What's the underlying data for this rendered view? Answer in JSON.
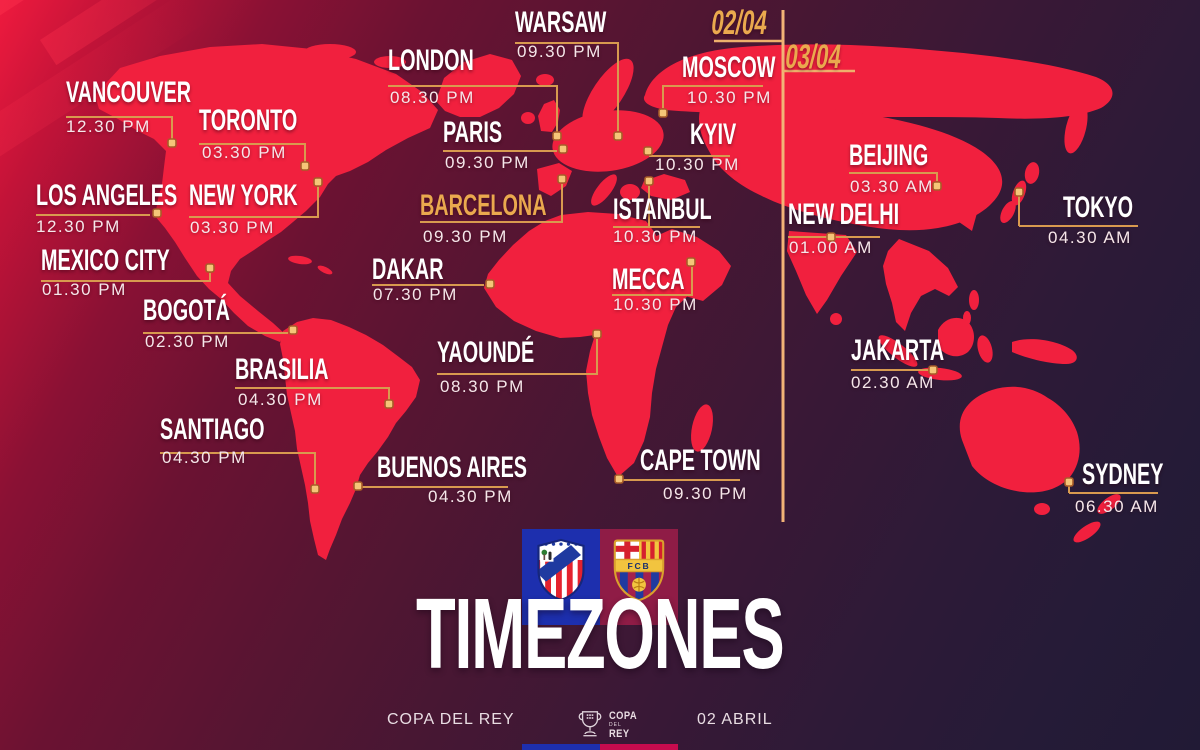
{
  "title": "TIMEZONES",
  "dates": {
    "left": "02/04",
    "right": "03/04"
  },
  "cities": [
    {
      "id": "vancouver",
      "name": "VANCOUVER",
      "time": "12.30 PM"
    },
    {
      "id": "los-angeles",
      "name": "LOS ANGELES",
      "time": "12.30 PM"
    },
    {
      "id": "mexico-city",
      "name": "MEXICO CITY",
      "time": "01.30 PM"
    },
    {
      "id": "toronto",
      "name": "TORONTO",
      "time": "03.30 PM"
    },
    {
      "id": "new-york",
      "name": "NEW YORK",
      "time": "03.30 PM"
    },
    {
      "id": "bogota",
      "name": "BOGOTÁ",
      "time": "02.30 PM"
    },
    {
      "id": "santiago",
      "name": "SANTIAGO",
      "time": "04.30 PM"
    },
    {
      "id": "brasilia",
      "name": "BRASILIA",
      "time": "04.30 PM"
    },
    {
      "id": "buenos-aires",
      "name": "BUENOS AIRES",
      "time": "04.30 PM"
    },
    {
      "id": "london",
      "name": "LONDON",
      "time": "08.30 PM"
    },
    {
      "id": "paris",
      "name": "PARIS",
      "time": "09.30 PM"
    },
    {
      "id": "barcelona",
      "name": "BARCELONA",
      "time": "09.30 PM",
      "highlight": true
    },
    {
      "id": "dakar",
      "name": "DAKAR",
      "time": "07.30 PM"
    },
    {
      "id": "yaounde",
      "name": "YAOUNDÉ",
      "time": "08.30 PM"
    },
    {
      "id": "warsaw",
      "name": "WARSAW",
      "time": "09.30 PM"
    },
    {
      "id": "moscow",
      "name": "MOSCOW",
      "time": "10.30 PM"
    },
    {
      "id": "kyiv",
      "name": "KYIV",
      "time": "10.30 PM"
    },
    {
      "id": "istanbul",
      "name": "ISTANBUL",
      "time": "10.30 PM"
    },
    {
      "id": "mecca",
      "name": "MECCA",
      "time": "10.30 PM"
    },
    {
      "id": "cape-town",
      "name": "CAPE TOWN",
      "time": "09.30 PM"
    },
    {
      "id": "new-delhi",
      "name": "NEW DELHI",
      "time": "01.00 AM"
    },
    {
      "id": "beijing",
      "name": "BEIJING",
      "time": "03.30 AM"
    },
    {
      "id": "tokyo",
      "name": "TOKYO",
      "time": "04.30 AM"
    },
    {
      "id": "jakarta",
      "name": "JAKARTA",
      "time": "02.30 AM"
    },
    {
      "id": "sydney",
      "name": "SYDNEY",
      "time": "06.30 AM"
    }
  ],
  "footer": {
    "competition": "COPA DEL REY",
    "match_date": "02 ABRIL",
    "logo": {
      "top": "COPA",
      "mid": "DEL",
      "bottom": "REY"
    },
    "barcelona_crest_text": "FCB"
  },
  "colors": {
    "map_red": "#f1203e",
    "accent_gold": "#eaa94e",
    "connector_line": "#d89a4f",
    "divider_line": "#f2b377",
    "bar_blue": "#1d2fae",
    "bar_red": "#c60b4e",
    "panel_blue": "#1d2fae",
    "panel_garnet": "#8f1c46"
  }
}
